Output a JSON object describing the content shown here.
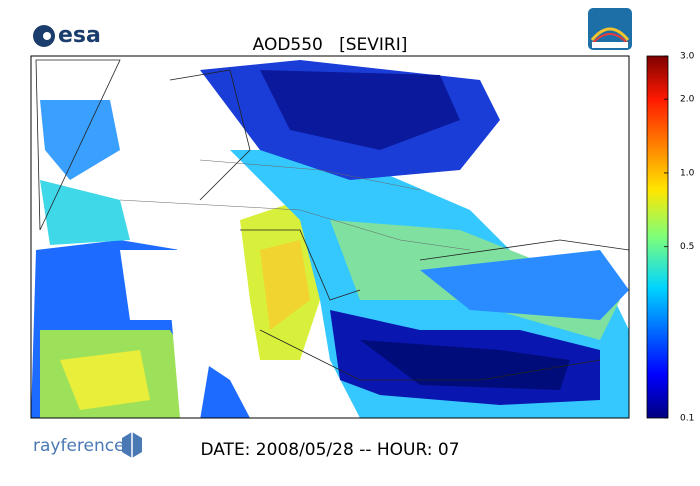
{
  "header": {
    "logo": "esa",
    "title": "AOD550   [SEVIRI]"
  },
  "colorbar": {
    "scale": "log",
    "lim": [
      0.1,
      3
    ],
    "ticks": [
      {
        "value": 3,
        "label": "3.0"
      },
      {
        "value": 2,
        "label": "2.0"
      },
      {
        "value": 1,
        "label": "1.0"
      },
      0.5,
      0.1
    ]
  },
  "footer": {
    "logo": "rayference",
    "caption": "DATE: 2008/05/28 -- HOUR: 07"
  }
}
